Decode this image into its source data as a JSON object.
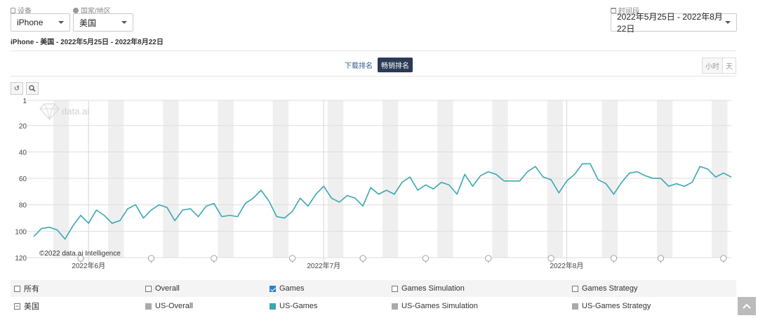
{
  "filters": {
    "device_label": "设备",
    "device_value": "iPhone",
    "country_label": "国家/地区",
    "country_value": "美国",
    "period_label": "时间段",
    "period_value": "2022年5月25日 - 2022年8月22日"
  },
  "subtitle": "iPhone - 美国 - 2022年5月25日 - 2022年8月22日",
  "tabs": {
    "download": "下载排名",
    "grossing": "畅销排名"
  },
  "granularity": {
    "hour": "小时",
    "day": "天"
  },
  "watermark": "data.ai",
  "copyright": "©2022 data.ai Intelligence",
  "legend": {
    "row1": {
      "all": "所有",
      "overall": "Overall",
      "games": "Games",
      "simulation": "Games Simulation",
      "strategy": "Games Strategy"
    },
    "row2": {
      "country": "美国",
      "us_overall": "US-Overall",
      "us_games": "US-Games",
      "us_simulation": "US-Games Simulation",
      "us_strategy": "US-Games Strategy"
    }
  },
  "colors": {
    "series": "#3aa7b2",
    "weekend_band": "#efefef",
    "grid": "#dddddd",
    "legend_gray": "#aaaaaa",
    "active_tab": "#2b3a55"
  },
  "chart_data": {
    "type": "line",
    "title": "",
    "y_reversed": true,
    "ylim": [
      1,
      120
    ],
    "y_ticks": [
      1,
      20,
      40,
      60,
      80,
      100,
      120
    ],
    "x_start": "2022-05-25",
    "x_end": "2022-08-22",
    "x_ticks": [
      {
        "date": "2022-06-01",
        "label": "2022年6月"
      },
      {
        "date": "2022-07-01",
        "label": "2022年7月"
      },
      {
        "date": "2022-08-01",
        "label": "2022年8月"
      }
    ],
    "grid": true,
    "weekend_bands": true,
    "series": [
      {
        "name": "US-Games",
        "color": "#3aa7b2",
        "values": [
          104,
          98,
          97,
          99,
          106,
          96,
          88,
          94,
          84,
          88,
          94,
          92,
          83,
          80,
          90,
          84,
          80,
          82,
          92,
          84,
          83,
          89,
          81,
          79,
          89,
          88,
          89,
          79,
          75,
          69,
          77,
          89,
          90,
          85,
          75,
          81,
          72,
          66,
          75,
          78,
          73,
          75,
          81,
          67,
          72,
          69,
          72,
          63,
          59,
          69,
          65,
          68,
          63,
          65,
          72,
          57,
          66,
          58,
          55,
          57,
          62,
          62,
          62,
          55,
          51,
          59,
          61,
          71,
          62,
          57,
          49,
          49,
          61,
          64,
          72,
          63,
          56,
          55,
          58,
          60,
          60,
          66,
          64,
          66,
          63,
          51,
          53,
          59,
          56,
          59
        ]
      }
    ]
  }
}
